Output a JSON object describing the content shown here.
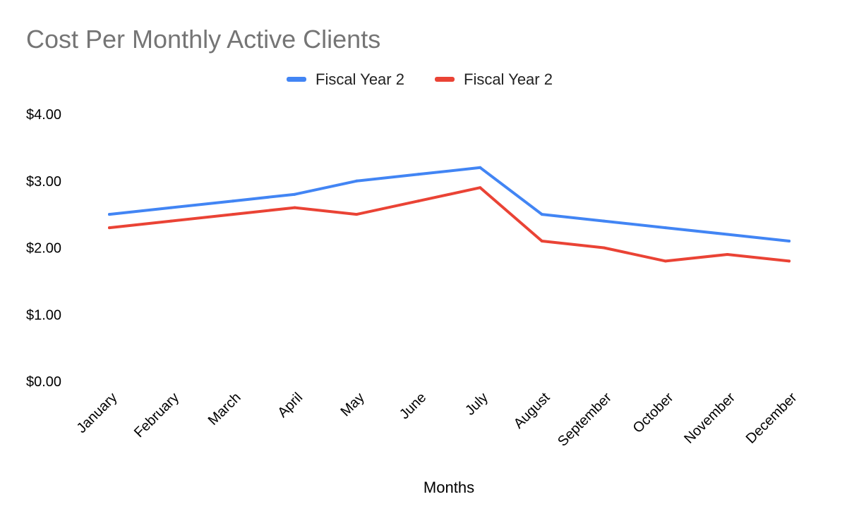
{
  "chart_data": {
    "type": "line",
    "title": "Cost Per Monthly Active Clients",
    "xlabel": "Months",
    "ylabel": "",
    "ylim": [
      0,
      4
    ],
    "y_ticks": [
      "$0.00",
      "$1.00",
      "$2.00",
      "$3.00",
      "$4.00"
    ],
    "categories": [
      "January",
      "February",
      "March",
      "April",
      "May",
      "June",
      "July",
      "August",
      "September",
      "October",
      "November",
      "December"
    ],
    "series": [
      {
        "name": "Fiscal Year 2",
        "color": "#4285f4",
        "values": [
          2.5,
          2.6,
          2.7,
          2.8,
          3.0,
          3.1,
          3.2,
          2.5,
          2.4,
          2.3,
          2.2,
          2.1
        ]
      },
      {
        "name": "Fiscal Year 2",
        "color": "#ea4335",
        "values": [
          2.3,
          2.4,
          2.5,
          2.6,
          2.5,
          2.7,
          2.9,
          2.1,
          2.0,
          1.8,
          1.9,
          1.8
        ]
      }
    ],
    "legend_position": "top",
    "grid": false
  }
}
